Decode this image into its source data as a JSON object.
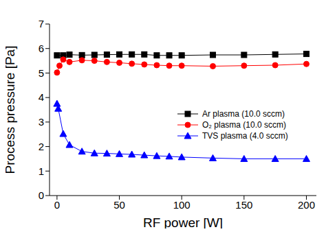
{
  "chart_data": {
    "type": "line",
    "x_label": "RF power [W]",
    "y_label": "Process pressure [Pa]",
    "xlim": [
      -6,
      208
    ],
    "xticks": [
      0,
      50,
      100,
      150,
      200
    ],
    "ylim": [
      0,
      7
    ],
    "yticks": [
      0,
      1,
      2,
      3,
      4,
      5,
      6,
      7
    ],
    "grid": false,
    "legend": "right",
    "series": [
      {
        "name": "Ar plasma (10.0 sccm)",
        "color": "#000000",
        "marker": "square",
        "line_style": "solid",
        "x": [
          0,
          5,
          10,
          20,
          30,
          40,
          50,
          60,
          70,
          80,
          90,
          100,
          125,
          150,
          175,
          200
        ],
        "values": [
          5.72,
          5.72,
          5.75,
          5.73,
          5.74,
          5.75,
          5.76,
          5.76,
          5.76,
          5.72,
          5.72,
          5.72,
          5.74,
          5.74,
          5.76,
          5.78
        ]
      },
      {
        "name": "O₂ plasma (10.0 sccm)",
        "color": "#ff0000",
        "marker": "circle",
        "line_style": "solid",
        "x": [
          0,
          2,
          5,
          10,
          20,
          30,
          40,
          50,
          60,
          70,
          80,
          90,
          100,
          125,
          150,
          175,
          200
        ],
        "values": [
          5.02,
          5.3,
          5.55,
          5.45,
          5.52,
          5.5,
          5.45,
          5.42,
          5.38,
          5.35,
          5.32,
          5.3,
          5.3,
          5.28,
          5.3,
          5.32,
          5.37
        ]
      },
      {
        "name": "TVS plasma (4.0 sccm)",
        "color": "#0000ff",
        "marker": "triangle",
        "line_style": "solid",
        "x": [
          0,
          1,
          5,
          10,
          20,
          30,
          40,
          50,
          60,
          70,
          80,
          90,
          100,
          125,
          150,
          175,
          200
        ],
        "values": [
          3.75,
          3.55,
          2.52,
          2.07,
          1.8,
          1.73,
          1.72,
          1.7,
          1.68,
          1.65,
          1.62,
          1.6,
          1.57,
          1.53,
          1.5,
          1.5,
          1.5
        ]
      }
    ]
  }
}
